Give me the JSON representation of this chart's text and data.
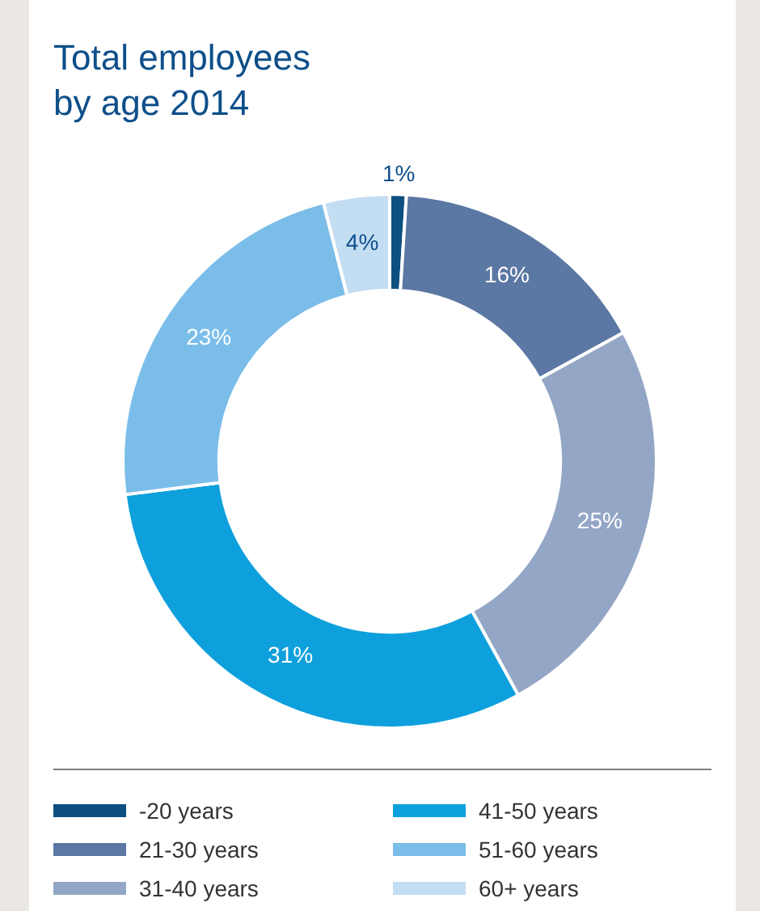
{
  "chart_data": {
    "type": "donut",
    "title": "Total employees by age 2014",
    "categories": [
      "-20 years",
      "21-30 years",
      "31-40 years",
      "41-50 years",
      "51-60 years",
      "60+ years"
    ],
    "values": [
      1,
      16,
      25,
      31,
      23,
      4
    ],
    "colors": [
      "#0d4f80",
      "#5b77a3",
      "#94a6c6",
      "#0ea0dc",
      "#7bbde9",
      "#c3ddf3"
    ],
    "value_labels": [
      "1%",
      "16%",
      "25%",
      "31%",
      "23%",
      "4%"
    ],
    "legend": "bottom"
  }
}
